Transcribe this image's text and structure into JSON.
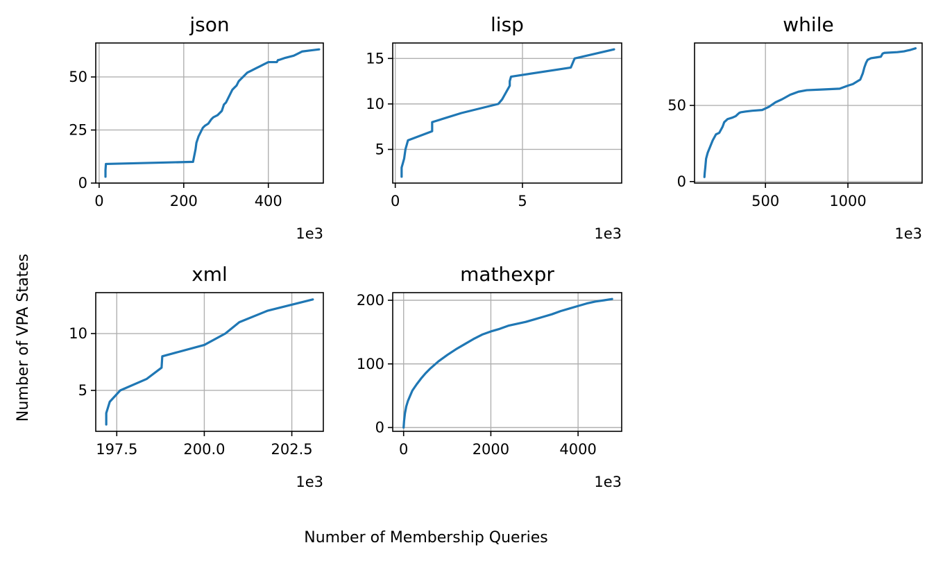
{
  "figure": {
    "xlabel": "Number of Membership Queries",
    "ylabel": "Number of VPA States",
    "line_color": "#1f77b4"
  },
  "chart_data": [
    {
      "type": "line",
      "title": "json",
      "xlim": [
        -8,
        530
      ],
      "ylim": [
        0,
        66
      ],
      "x_ticks": [
        0,
        200,
        400
      ],
      "y_ticks": [
        0,
        25,
        50
      ],
      "x_tick_labels": [
        "0",
        "200",
        "400"
      ],
      "y_tick_labels": [
        "0",
        "25",
        "50"
      ],
      "x_multiplier": "1e3",
      "grid": true,
      "x": [
        15,
        15,
        16,
        222,
        224,
        226,
        228,
        230,
        235,
        240,
        245,
        250,
        258,
        265,
        270,
        280,
        290,
        295,
        300,
        305,
        310,
        315,
        320,
        325,
        330,
        335,
        340,
        350,
        360,
        370,
        380,
        390,
        400,
        410,
        420,
        423,
        425,
        440,
        460,
        470,
        480,
        500,
        520
      ],
      "y": [
        3,
        6,
        9,
        10,
        12,
        14,
        16,
        19,
        22,
        24,
        26,
        27,
        28,
        30,
        31,
        32,
        34,
        37,
        38,
        40,
        42,
        44,
        45,
        46,
        48,
        49,
        50,
        52,
        53,
        54,
        55,
        56,
        57,
        57,
        57,
        58,
        58,
        59,
        60,
        61,
        62,
        62.5,
        63
      ]
    },
    {
      "type": "line",
      "title": "lisp",
      "xlim": [
        -0.1,
        8.9
      ],
      "ylim": [
        1.3,
        16.7
      ],
      "x_ticks": [
        0,
        5
      ],
      "y_ticks": [
        5,
        10,
        15
      ],
      "x_tick_labels": [
        "0",
        "5"
      ],
      "y_tick_labels": [
        "5",
        "10",
        "15"
      ],
      "x_multiplier": "1e3",
      "grid": true,
      "x": [
        0.25,
        0.25,
        0.3,
        0.35,
        0.4,
        0.45,
        0.5,
        1.45,
        1.45,
        2.6,
        4.05,
        4.2,
        4.3,
        4.4,
        4.5,
        4.5,
        4.55,
        6.9,
        7.05,
        8.6
      ],
      "y": [
        2,
        3,
        3.5,
        4,
        5,
        5.5,
        6,
        7,
        8,
        9,
        10,
        10.5,
        11,
        11.5,
        12,
        12.5,
        13,
        14,
        15,
        16
      ]
    },
    {
      "type": "line",
      "title": "while",
      "xlim": [
        70,
        1450
      ],
      "ylim": [
        -1,
        91
      ],
      "x_ticks": [
        500,
        1000
      ],
      "y_ticks": [
        0,
        50
      ],
      "x_tick_labels": [
        "500",
        "1000"
      ],
      "y_tick_labels": [
        "0",
        "50"
      ],
      "x_multiplier": "1e3",
      "grid": true,
      "x": [
        130,
        132,
        135,
        140,
        150,
        165,
        180,
        200,
        220,
        230,
        240,
        250,
        270,
        300,
        320,
        330,
        340,
        350,
        380,
        420,
        480,
        520,
        560,
        600,
        650,
        700,
        750,
        850,
        950,
        1000,
        1030,
        1060,
        1075,
        1090,
        1100,
        1110,
        1120,
        1140,
        1170,
        1200,
        1210,
        1220,
        1300,
        1340,
        1360,
        1380,
        1410
      ],
      "y": [
        3,
        6,
        9,
        15,
        19,
        23,
        27,
        31,
        32,
        34,
        36,
        39,
        41,
        42,
        43,
        44,
        45,
        45.5,
        46,
        46.5,
        47,
        49,
        52,
        54,
        57,
        59,
        60,
        60.5,
        61,
        63,
        64,
        66,
        67,
        71,
        75,
        78,
        80,
        81,
        81.5,
        82,
        84,
        84.5,
        85,
        85.5,
        86,
        86.5,
        87.5
      ]
    },
    {
      "type": "line",
      "title": "xml",
      "xlim": [
        196.9,
        203.4
      ],
      "ylim": [
        1.4,
        13.6
      ],
      "x_ticks": [
        197.5,
        200.0,
        202.5
      ],
      "y_ticks": [
        5,
        10
      ],
      "x_tick_labels": [
        "197.5",
        "200.0",
        "202.5"
      ],
      "y_tick_labels": [
        "5",
        "10"
      ],
      "x_multiplier": "1e3",
      "grid": true,
      "x": [
        197.2,
        197.2,
        197.25,
        197.3,
        197.6,
        198.35,
        198.78,
        198.8,
        200.0,
        200.6,
        201.0,
        201.8,
        203.1
      ],
      "y": [
        2,
        3,
        3.5,
        4,
        5,
        6,
        7,
        8,
        9,
        10,
        11,
        12,
        13
      ]
    },
    {
      "type": "line",
      "title": "mathexpr",
      "xlim": [
        -250,
        5000
      ],
      "ylim": [
        -6,
        212
      ],
      "x_ticks": [
        0,
        2000,
        4000
      ],
      "y_ticks": [
        0,
        100,
        200
      ],
      "x_tick_labels": [
        "0",
        "2000",
        "4000"
      ],
      "y_tick_labels": [
        "0",
        "100",
        "200"
      ],
      "x_multiplier": "1e3",
      "grid": true,
      "x": [
        0,
        10,
        30,
        60,
        100,
        150,
        200,
        300,
        400,
        500,
        600,
        700,
        800,
        1000,
        1200,
        1400,
        1600,
        1800,
        2000,
        2200,
        2400,
        2600,
        2800,
        3000,
        3200,
        3400,
        3600,
        3800,
        4000,
        4200,
        4400,
        4600,
        4780
      ],
      "y": [
        0,
        10,
        22,
        33,
        42,
        50,
        58,
        68,
        77,
        85,
        92,
        98,
        104,
        114,
        123,
        131,
        139,
        146,
        151,
        155,
        160,
        163,
        166,
        170,
        174,
        178,
        183,
        187,
        191,
        195,
        198,
        200,
        202
      ]
    }
  ]
}
